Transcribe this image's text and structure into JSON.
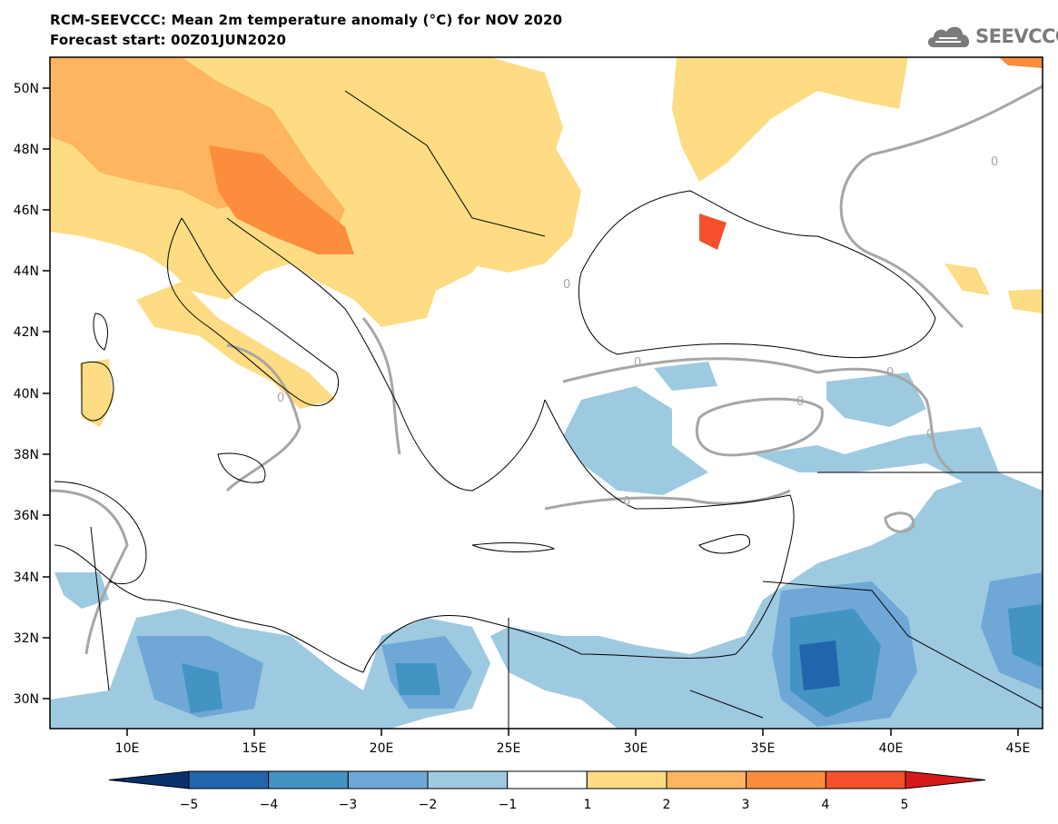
{
  "title": {
    "line1": "RCM-SEEVCCC: Mean 2m temperature anomaly (°C) for NOV 2020",
    "line2": "Forecast start: 00Z01JUN2020"
  },
  "logo": {
    "text": "SEEVCCC",
    "icon": "cloud-icon"
  },
  "axes": {
    "lat_labels": [
      "50N",
      "48N",
      "46N",
      "44N",
      "42N",
      "40N",
      "38N",
      "36N",
      "34N",
      "32N",
      "30N"
    ],
    "lon_labels": [
      "10E",
      "15E",
      "20E",
      "25E",
      "30E",
      "35E",
      "40E",
      "45E"
    ]
  },
  "map": {
    "contour_label": "0",
    "extent": {
      "lon_min": 7,
      "lon_max": 46,
      "lat_min": 29,
      "lat_max": 51
    }
  },
  "colorbar": {
    "labels": [
      "−5",
      "−4",
      "−3",
      "−2",
      "−1",
      "1",
      "2",
      "3",
      "4",
      "5"
    ],
    "colors": [
      "#08306b",
      "#2166ac",
      "#4393c3",
      "#6fa8d6",
      "#9ecae1",
      "#ffffff",
      "#fddc84",
      "#fdb55f",
      "#fc8d3c",
      "#f4502c",
      "#d7191c"
    ]
  },
  "colors": {
    "sea": "#ffffff",
    "contour": "#a6a6a6",
    "coast": "#000000"
  }
}
